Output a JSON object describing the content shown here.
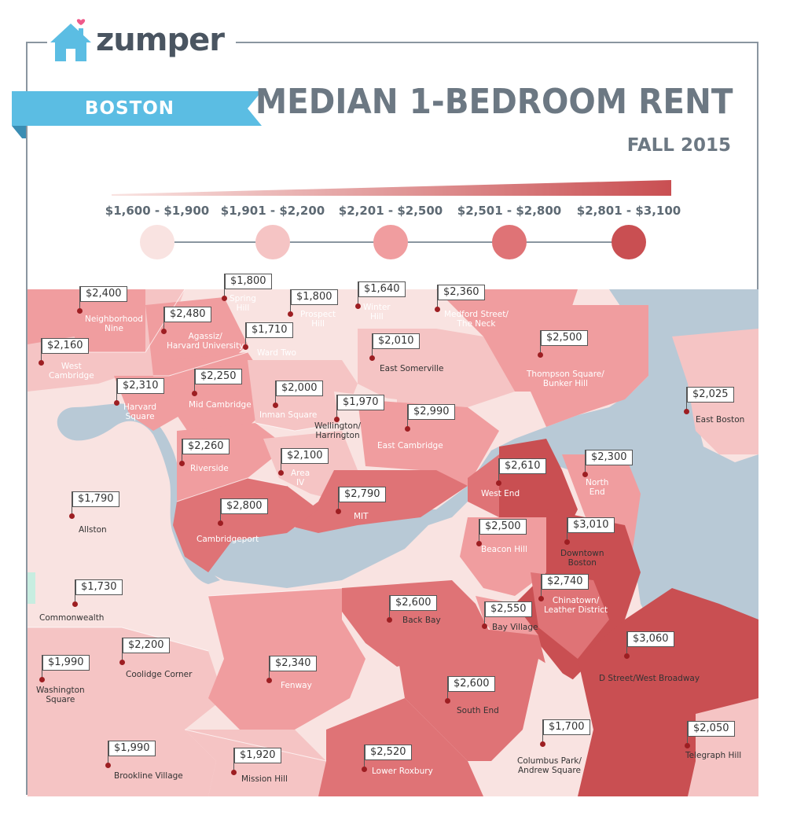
{
  "brand": {
    "name": "zumper"
  },
  "city": "BOSTON",
  "title": "MEDIAN 1-BEDROOM RENT",
  "subtitle": "FALL 2015",
  "colors": {
    "accent": "#5bbde3",
    "title": "#6c7883",
    "water": "#b8c9d6",
    "tier1": "#f9e3e1",
    "tier2": "#f5c4c4",
    "tier3": "#f09d9f",
    "tier4": "#df7376",
    "tier5": "#c94f52"
  },
  "legend": [
    {
      "label": "$1,600 - $1,900",
      "tier": "tier1"
    },
    {
      "label": "$1,901 - $2,200",
      "tier": "tier2"
    },
    {
      "label": "$2,201 - $2,500",
      "tier": "tier3"
    },
    {
      "label": "$2,501 - $2,800",
      "tier": "tier4"
    },
    {
      "label": "$2,801 - $3,100",
      "tier": "tier5"
    }
  ],
  "neighborhoods": [
    {
      "name": "Neighborhood\nNine",
      "price": "$2,400"
    },
    {
      "name": "Spring\nHill",
      "price": "$1,800"
    },
    {
      "name": "Prospect\nHill",
      "price": "$1,800"
    },
    {
      "name": "Winter\nHill",
      "price": "$1,640"
    },
    {
      "name": "Medford Street/\nThe Neck",
      "price": "$2,360"
    },
    {
      "name": "Agassiz/\nHarvard University",
      "price": "$2,480"
    },
    {
      "name": "Ward Two",
      "price": "$1,710"
    },
    {
      "name": "East Somerville",
      "price": "$2,010"
    },
    {
      "name": "West\nCambridge",
      "price": "$2,160"
    },
    {
      "name": "Thompson Square/\nBunker Hill",
      "price": "$2,500"
    },
    {
      "name": "Harvard\nSquare",
      "price": "$2,310"
    },
    {
      "name": "Mid Cambridge",
      "price": "$2,250"
    },
    {
      "name": "Inman Square",
      "price": "$2,000"
    },
    {
      "name": "East Boston",
      "price": "$2,025"
    },
    {
      "name": "Wellington/\nHarrington",
      "price": "$1,970"
    },
    {
      "name": "East Cambridge",
      "price": "$2,990"
    },
    {
      "name": "Riverside",
      "price": "$2,260"
    },
    {
      "name": "Area\nIV",
      "price": "$2,100"
    },
    {
      "name": "West End",
      "price": "$2,610"
    },
    {
      "name": "North\nEnd",
      "price": "$2,300"
    },
    {
      "name": "Allston",
      "price": "$1,790"
    },
    {
      "name": "MIT",
      "price": "$2,790"
    },
    {
      "name": "Cambridgeport",
      "price": "$2,800"
    },
    {
      "name": "Beacon Hill",
      "price": "$2,500"
    },
    {
      "name": "Downtown\nBoston",
      "price": "$3,010"
    },
    {
      "name": "Chinatown/\nLeather District",
      "price": "$2,740"
    },
    {
      "name": "Commonwealth",
      "price": "$1,730"
    },
    {
      "name": "Back Bay",
      "price": "$2,600"
    },
    {
      "name": "Bay Village",
      "price": "$2,550"
    },
    {
      "name": "D Street/West Broadway",
      "price": "$3,060"
    },
    {
      "name": "Coolidge Corner",
      "price": "$2,200"
    },
    {
      "name": "Washington\nSquare",
      "price": "$1,990"
    },
    {
      "name": "Fenway",
      "price": "$2,340"
    },
    {
      "name": "South End",
      "price": "$2,600"
    },
    {
      "name": "Columbus Park/\nAndrew Square",
      "price": "$1,700"
    },
    {
      "name": "Telegraph Hill",
      "price": "$2,050"
    },
    {
      "name": "Brookline Village",
      "price": "$1,990"
    },
    {
      "name": "Mission Hill",
      "price": "$1,920"
    },
    {
      "name": "Lower Roxbury",
      "price": "$2,520"
    }
  ]
}
